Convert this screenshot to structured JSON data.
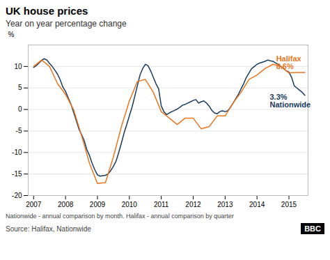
{
  "chart_data": {
    "type": "line",
    "title": "UK house prices",
    "subtitle": "Year on year percentage change",
    "ylabel": "%",
    "caption": "Nationwide - annual comparison by month.  Halifax - annual comparison by quarter",
    "source": "Source: Halifax, Nationwide",
    "logo": "BBC",
    "xlim": [
      2006.83,
      2015.6
    ],
    "xticks": [
      2007,
      2008,
      2009,
      2010,
      2011,
      2012,
      2013,
      2014,
      2015
    ],
    "ylim": [
      -20,
      15
    ],
    "yticks": [
      -20,
      -15,
      -10,
      -5,
      0,
      5,
      10
    ],
    "grid": true,
    "series": [
      {
        "name": "Nationwide",
        "color": "#1a3a5c",
        "annotation": {
          "text": "3.3%\nNationwide",
          "x": 2014.4,
          "y": 3.5
        },
        "x": [
          2007.0,
          2007.083,
          2007.167,
          2007.25,
          2007.333,
          2007.417,
          2007.5,
          2007.583,
          2007.667,
          2007.75,
          2007.833,
          2007.917,
          2008.0,
          2008.083,
          2008.167,
          2008.25,
          2008.333,
          2008.417,
          2008.5,
          2008.583,
          2008.667,
          2008.75,
          2008.833,
          2008.917,
          2009.0,
          2009.083,
          2009.167,
          2009.25,
          2009.333,
          2009.417,
          2009.5,
          2009.583,
          2009.667,
          2009.75,
          2009.833,
          2009.917,
          2010.0,
          2010.083,
          2010.167,
          2010.25,
          2010.333,
          2010.417,
          2010.5,
          2010.583,
          2010.667,
          2010.75,
          2010.833,
          2010.917,
          2011.0,
          2011.083,
          2011.167,
          2011.25,
          2011.333,
          2011.417,
          2011.5,
          2011.583,
          2011.667,
          2011.75,
          2011.833,
          2011.917,
          2012.0,
          2012.083,
          2012.167,
          2012.25,
          2012.333,
          2012.417,
          2012.5,
          2012.583,
          2012.667,
          2012.75,
          2012.833,
          2012.917,
          2013.0,
          2013.083,
          2013.167,
          2013.25,
          2013.333,
          2013.417,
          2013.5,
          2013.583,
          2013.667,
          2013.75,
          2013.833,
          2013.917,
          2014.0,
          2014.083,
          2014.167,
          2014.25,
          2014.333,
          2014.417,
          2014.5,
          2014.583,
          2014.667,
          2014.75,
          2014.833,
          2014.917,
          2015.0,
          2015.083,
          2015.167,
          2015.25,
          2015.333,
          2015.417,
          2015.5
        ],
        "values": [
          9.8,
          10.2,
          10.8,
          11.4,
          11.8,
          11.5,
          10.7,
          10.0,
          9.1,
          8.2,
          6.9,
          5.2,
          4.2,
          2.7,
          1.3,
          -0.6,
          -2.5,
          -4.5,
          -5.8,
          -7.2,
          -9.3,
          -10.7,
          -12.5,
          -14.0,
          -15.2,
          -15.5,
          -15.4,
          -15.3,
          -15.0,
          -14.2,
          -13.2,
          -12.0,
          -10.0,
          -7.8,
          -5.5,
          -3.5,
          -1.5,
          0.5,
          3.0,
          5.5,
          8.0,
          9.5,
          10.5,
          10.2,
          9.0,
          7.5,
          6.0,
          4.8,
          0.8,
          -0.5,
          -1.2,
          -0.8,
          -0.5,
          -0.2,
          0.1,
          0.5,
          1.0,
          1.2,
          1.5,
          1.8,
          2.1,
          2.3,
          1.5,
          1.8,
          2.0,
          1.5,
          0.8,
          -0.2,
          -0.8,
          -1.0,
          -0.5,
          -0.3,
          -0.5,
          -0.3,
          0.5,
          1.5,
          2.5,
          3.5,
          4.8,
          6.0,
          7.5,
          8.5,
          9.5,
          10.0,
          10.5,
          10.8,
          11.0,
          11.2,
          11.5,
          11.3,
          11.2,
          10.8,
          10.5,
          10.0,
          9.5,
          9.0,
          8.7,
          7.5,
          5.5,
          5.0,
          4.5,
          4.0,
          3.3
        ]
      },
      {
        "name": "Halifax",
        "color": "#e87722",
        "annotation": {
          "text": "Halifax\n8.6%",
          "x": 2014.6,
          "y": 12.5
        },
        "x": [
          2007.0,
          2007.25,
          2007.5,
          2007.75,
          2008.0,
          2008.25,
          2008.5,
          2008.75,
          2009.0,
          2009.25,
          2009.5,
          2009.75,
          2010.0,
          2010.25,
          2010.5,
          2010.75,
          2011.0,
          2011.25,
          2011.5,
          2011.75,
          2012.0,
          2012.25,
          2012.5,
          2012.75,
          2013.0,
          2013.25,
          2013.5,
          2013.75,
          2014.0,
          2014.25,
          2014.5,
          2014.75,
          2015.0,
          2015.25,
          2015.5
        ],
        "values": [
          10.0,
          11.5,
          10.0,
          6.0,
          3.5,
          0.0,
          -6.0,
          -12.5,
          -17.2,
          -17.0,
          -11.0,
          -4.0,
          2.0,
          6.5,
          7.0,
          4.0,
          -0.5,
          -2.0,
          -3.5,
          -2.0,
          -2.0,
          -4.5,
          -4.0,
          -1.5,
          -1.5,
          1.5,
          4.0,
          7.0,
          8.0,
          9.5,
          10.5,
          10.0,
          8.5,
          8.6,
          8.6
        ]
      }
    ]
  }
}
